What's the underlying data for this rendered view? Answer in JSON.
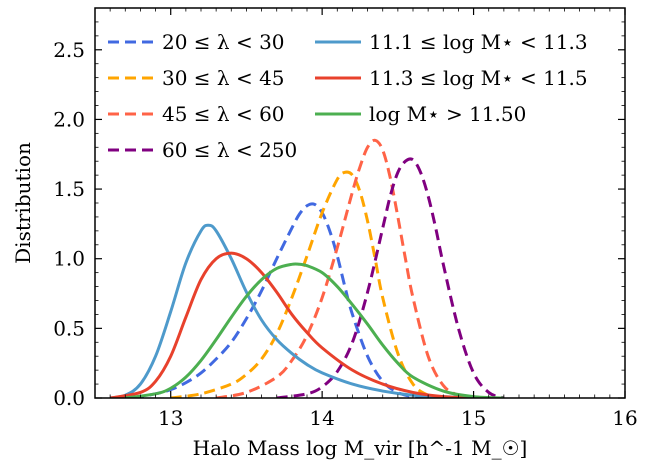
{
  "chart_data": {
    "type": "line",
    "xlabel": "Halo Mass log M_vir [h^-1 M_☉]",
    "ylabel": "Distribution",
    "xlim": [
      12.5,
      16.0
    ],
    "ylim": [
      0.0,
      2.8
    ],
    "xticks": [
      13,
      14,
      15,
      16
    ],
    "xtick_labels": [
      "13",
      "14",
      "15",
      "16"
    ],
    "yticks": [
      0.0,
      0.5,
      1.0,
      1.5,
      2.0,
      2.5
    ],
    "ytick_labels": [
      "0.0",
      "0.5",
      "1.0",
      "1.5",
      "2.0",
      "2.5"
    ],
    "grid": false,
    "legend_position": "top",
    "series": [
      {
        "name": "20 ≤ λ < 30",
        "color": "#4169e1",
        "style": "dashed",
        "x": [
          12.75,
          12.9,
          13.0,
          13.1,
          13.2,
          13.3,
          13.4,
          13.5,
          13.6,
          13.7,
          13.8,
          13.85,
          13.9,
          13.95,
          14.0,
          14.05,
          14.1,
          14.15,
          14.2,
          14.3,
          14.4,
          14.5,
          14.6,
          14.75
        ],
        "y": [
          0.0,
          0.03,
          0.06,
          0.11,
          0.18,
          0.28,
          0.4,
          0.57,
          0.77,
          1.0,
          1.22,
          1.32,
          1.38,
          1.39,
          1.33,
          1.2,
          1.02,
          0.8,
          0.6,
          0.3,
          0.12,
          0.04,
          0.01,
          0.0
        ]
      },
      {
        "name": "30 ≤ λ < 45",
        "color": "#ffa500",
        "style": "dashed",
        "x": [
          13.0,
          13.2,
          13.4,
          13.5,
          13.6,
          13.7,
          13.8,
          13.9,
          14.0,
          14.1,
          14.15,
          14.2,
          14.25,
          14.3,
          14.35,
          14.4,
          14.5,
          14.6,
          14.7,
          14.8
        ],
        "y": [
          0.0,
          0.03,
          0.1,
          0.17,
          0.28,
          0.46,
          0.72,
          1.02,
          1.33,
          1.57,
          1.62,
          1.6,
          1.48,
          1.27,
          1.0,
          0.72,
          0.32,
          0.1,
          0.02,
          0.0
        ]
      },
      {
        "name": "45 ≤ λ < 60",
        "color": "#ff6347",
        "style": "dashed",
        "x": [
          13.3,
          13.5,
          13.7,
          13.8,
          13.9,
          14.0,
          14.1,
          14.2,
          14.25,
          14.3,
          14.35,
          14.4,
          14.45,
          14.5,
          14.55,
          14.6,
          14.7,
          14.8,
          14.9,
          15.0
        ],
        "y": [
          0.0,
          0.04,
          0.15,
          0.27,
          0.45,
          0.72,
          1.08,
          1.48,
          1.66,
          1.8,
          1.85,
          1.78,
          1.58,
          1.3,
          1.0,
          0.72,
          0.3,
          0.09,
          0.02,
          0.0
        ]
      },
      {
        "name": "60 ≤ λ < 250",
        "color": "#800080",
        "style": "dashed",
        "x": [
          13.7,
          13.9,
          14.0,
          14.1,
          14.2,
          14.3,
          14.4,
          14.45,
          14.5,
          14.55,
          14.6,
          14.65,
          14.7,
          14.75,
          14.8,
          14.9,
          15.0,
          15.1,
          15.2
        ],
        "y": [
          0.0,
          0.03,
          0.08,
          0.19,
          0.4,
          0.76,
          1.22,
          1.45,
          1.62,
          1.7,
          1.71,
          1.62,
          1.45,
          1.22,
          0.96,
          0.5,
          0.18,
          0.04,
          0.0
        ]
      },
      {
        "name": "11.1 ≤ log M⋆ < 11.3",
        "color": "#4e9acb",
        "style": "solid",
        "x": [
          12.6,
          12.7,
          12.8,
          12.9,
          13.0,
          13.1,
          13.2,
          13.25,
          13.3,
          13.4,
          13.5,
          13.6,
          13.7,
          13.8,
          13.9,
          14.0,
          14.2,
          14.4,
          14.6,
          14.8,
          15.0
        ],
        "y": [
          0.0,
          0.02,
          0.1,
          0.3,
          0.62,
          0.97,
          1.2,
          1.24,
          1.2,
          1.0,
          0.76,
          0.56,
          0.42,
          0.32,
          0.24,
          0.18,
          0.1,
          0.05,
          0.02,
          0.01,
          0.0
        ]
      },
      {
        "name": "11.3 ≤ log M⋆ < 11.5",
        "color": "#e8412c",
        "style": "solid",
        "x": [
          12.6,
          12.8,
          12.9,
          13.0,
          13.1,
          13.2,
          13.3,
          13.4,
          13.5,
          13.6,
          13.7,
          13.8,
          13.9,
          14.0,
          14.2,
          14.4,
          14.6,
          14.8,
          15.0,
          15.2
        ],
        "y": [
          0.0,
          0.04,
          0.12,
          0.3,
          0.58,
          0.85,
          1.0,
          1.04,
          1.0,
          0.9,
          0.76,
          0.6,
          0.47,
          0.36,
          0.2,
          0.1,
          0.04,
          0.01,
          0.0,
          0.0
        ]
      },
      {
        "name": "log M⋆ > 11.50",
        "color": "#4caf50",
        "style": "solid",
        "x": [
          12.7,
          12.9,
          13.0,
          13.1,
          13.2,
          13.3,
          13.4,
          13.5,
          13.6,
          13.7,
          13.8,
          13.85,
          13.9,
          14.0,
          14.1,
          14.2,
          14.3,
          14.4,
          14.5,
          14.6,
          14.8,
          15.0,
          15.2
        ],
        "y": [
          0.0,
          0.03,
          0.07,
          0.15,
          0.27,
          0.42,
          0.58,
          0.73,
          0.85,
          0.93,
          0.96,
          0.96,
          0.95,
          0.9,
          0.8,
          0.67,
          0.53,
          0.38,
          0.25,
          0.15,
          0.05,
          0.01,
          0.0
        ]
      }
    ]
  }
}
